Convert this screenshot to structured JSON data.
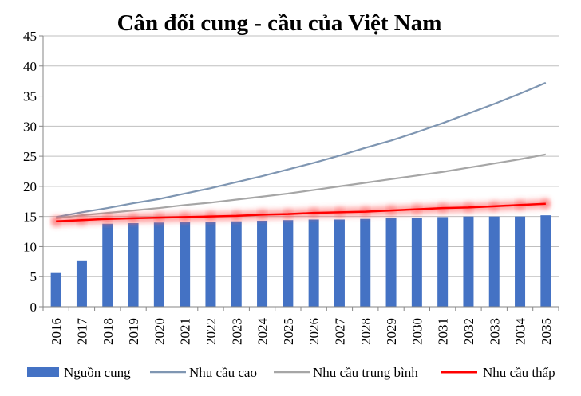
{
  "chart_data": {
    "type": "bar+line",
    "title": "Cân đối cung - cầu của Việt Nam",
    "xlabel": "",
    "ylabel": "",
    "ylim": [
      0,
      45
    ],
    "yticks": [
      0,
      5,
      10,
      15,
      20,
      25,
      30,
      35,
      40,
      45
    ],
    "categories": [
      "2016",
      "2017",
      "2018",
      "2019",
      "2020",
      "2021",
      "2022",
      "2023",
      "2024",
      "2025",
      "2026",
      "2027",
      "2028",
      "2029",
      "2030",
      "2031",
      "2032",
      "2033",
      "2034",
      "2035"
    ],
    "grid": true,
    "legend_position": "bottom",
    "series": [
      {
        "name": "Nguồn cung",
        "type": "bar",
        "color": "#4472C4",
        "values": [
          5.6,
          7.7,
          13.8,
          13.9,
          14.0,
          14.1,
          14.1,
          14.2,
          14.3,
          14.4,
          14.5,
          14.5,
          14.6,
          14.7,
          14.8,
          14.9,
          15.0,
          15.0,
          15.0,
          15.2
        ]
      },
      {
        "name": "Nhu cầu cao",
        "type": "line",
        "color": "#7F96B2",
        "values": [
          14.9,
          15.7,
          16.4,
          17.2,
          17.9,
          18.8,
          19.7,
          20.7,
          21.7,
          22.8,
          23.9,
          25.1,
          26.4,
          27.6,
          29.0,
          30.5,
          32.1,
          33.7,
          35.4,
          37.2
        ]
      },
      {
        "name": "Nhu cầu trung bình",
        "type": "line",
        "color": "#A6A6A6",
        "values": [
          14.7,
          15.2,
          15.6,
          16.0,
          16.4,
          16.9,
          17.3,
          17.8,
          18.3,
          18.8,
          19.4,
          20.0,
          20.6,
          21.2,
          21.8,
          22.4,
          23.1,
          23.8,
          24.5,
          25.3
        ]
      },
      {
        "name": "Nhu cầu thấp",
        "type": "line",
        "color": "#FF0000",
        "glow": true,
        "values": [
          14.2,
          14.4,
          14.6,
          14.7,
          14.8,
          14.9,
          15.0,
          15.1,
          15.3,
          15.4,
          15.6,
          15.7,
          15.8,
          16.0,
          16.2,
          16.4,
          16.5,
          16.7,
          16.9,
          17.1
        ]
      }
    ]
  }
}
